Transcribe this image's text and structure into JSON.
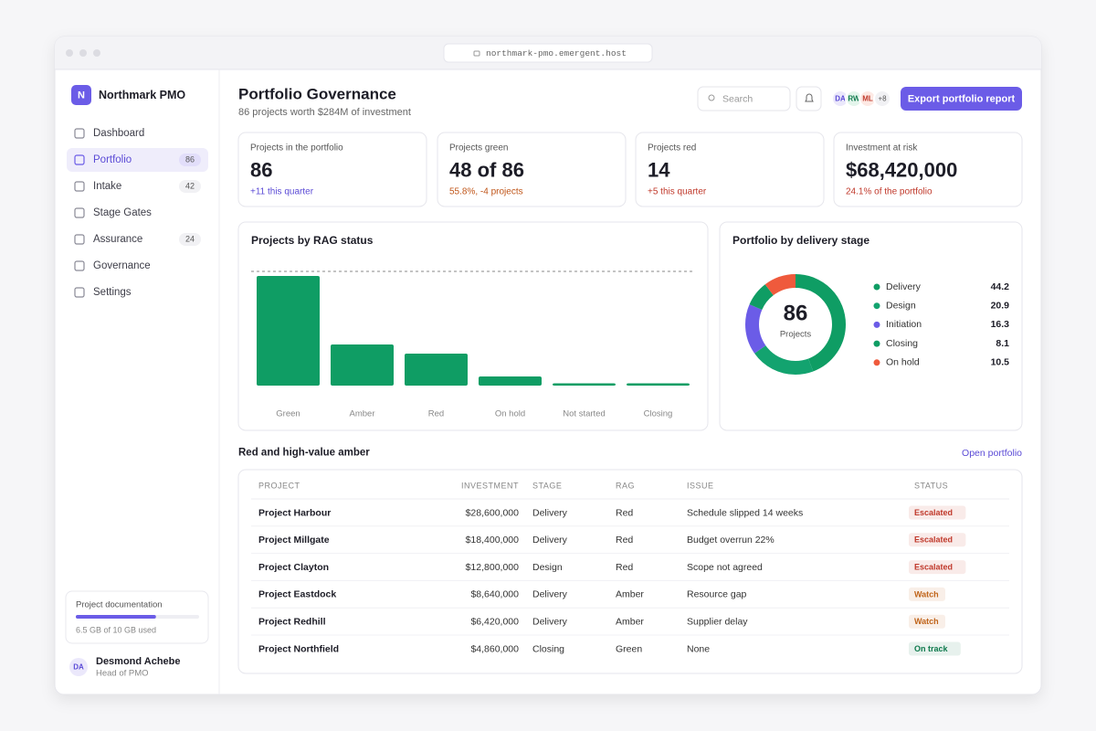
{
  "browser": {
    "url": "northmark-pmo.emergent.host"
  },
  "sidebar": {
    "logo": "N",
    "brand": "Northmark PMO",
    "nav": [
      {
        "label": "Dashboard"
      },
      {
        "label": "Portfolio",
        "count": 86,
        "active": true
      },
      {
        "label": "Intake",
        "count": 42
      },
      {
        "label": "Stage Gates"
      },
      {
        "label": "Assurance",
        "count": 24
      },
      {
        "label": "Governance"
      },
      {
        "label": "Settings"
      }
    ],
    "storage": {
      "title": "Project documentation",
      "used": 6.5,
      "total": 10,
      "text": "6.5 GB of 10 GB used"
    },
    "user": {
      "initials": "DA",
      "name": "Desmond Achebe",
      "role": "Head of PMO"
    }
  },
  "header": {
    "title": "Portfolio Governance",
    "subtitle": "86 projects worth $284M of investment",
    "search": "Search",
    "avatars": [
      "DA",
      "RW",
      "ML"
    ],
    "more": "+8",
    "button": "Export portfolio report"
  },
  "kpis": [
    {
      "label": "Projects in the portfolio",
      "value": "86",
      "note": "+11 this quarter",
      "note_color": "#5b4bd6"
    },
    {
      "label": "Projects green",
      "value": "48 of 86",
      "note": "55.8%, -4 projects",
      "note_color": "#c0561a"
    },
    {
      "label": "Projects red",
      "value": "14",
      "note": "+5 this quarter",
      "note_color": "#c0392b"
    },
    {
      "label": "Investment at risk",
      "value": "$68,420,000",
      "note": "24.1% of the portfolio",
      "note_color": "#c0392b"
    }
  ],
  "chart_data": [
    {
      "type": "bar",
      "title": "Projects by RAG status",
      "categories": [
        "Green",
        "Amber",
        "Red",
        "On hold",
        "Not started",
        "Closing"
      ],
      "values": [
        48,
        18,
        14,
        4,
        1,
        1
      ],
      "color": "#0f9d64",
      "ylim": [
        0,
        50
      ]
    },
    {
      "type": "donut",
      "title": "Portfolio by delivery stage",
      "center_value": 86,
      "center_label": "Projects",
      "categories": [
        "Delivery",
        "Design",
        "Initiation",
        "Closing",
        "On hold"
      ],
      "values": [
        44.2,
        20.9,
        16.3,
        8.1,
        10.5
      ],
      "colors": [
        "#0f9d64",
        "#13a36f",
        "#6b5ce7",
        "#0f9d64",
        "#ef5a3c"
      ]
    }
  ],
  "table": {
    "title": "Red and high-value amber",
    "link": "Open portfolio",
    "columns": [
      "PROJECT",
      "INVESTMENT",
      "STAGE",
      "RAG",
      "ISSUE",
      "STATUS"
    ],
    "rows": [
      {
        "cells": [
          "Project Harbour",
          "$28,600,000",
          "Delivery",
          "Red",
          "Schedule slipped 14 weeks",
          "Escalated"
        ],
        "status_color": "#c0392b"
      },
      {
        "cells": [
          "Project Millgate",
          "$18,400,000",
          "Delivery",
          "Red",
          "Budget overrun 22%",
          "Escalated"
        ],
        "status_color": "#c0392b"
      },
      {
        "cells": [
          "Project Clayton",
          "$12,800,000",
          "Design",
          "Red",
          "Scope not agreed",
          "Escalated"
        ],
        "status_color": "#c0392b"
      },
      {
        "cells": [
          "Project Eastdock",
          "$8,640,000",
          "Delivery",
          "Amber",
          "Resource gap",
          "Watch"
        ],
        "status_color": "#c0641a"
      },
      {
        "cells": [
          "Project Redhill",
          "$6,420,000",
          "Delivery",
          "Amber",
          "Supplier delay",
          "Watch"
        ],
        "status_color": "#c0641a"
      },
      {
        "cells": [
          "Project Northfield",
          "$4,860,000",
          "Closing",
          "Green",
          "None",
          "On track"
        ],
        "status_color": "#0f7a4d"
      }
    ]
  }
}
